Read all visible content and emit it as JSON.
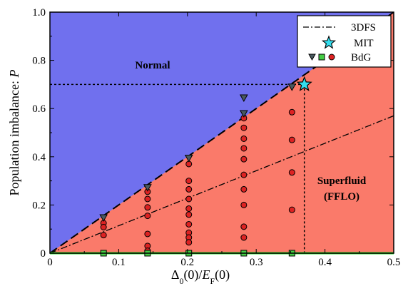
{
  "chart_data": {
    "type": "scatter",
    "title": "",
    "xlabel": "Δ0(0)/EF(0)",
    "xlabel_parts": {
      "main": "Δ",
      "sub0": "0",
      "mid": "(0)/",
      "ital": "E",
      "sub1": "F",
      "end": "(0)"
    },
    "ylabel": "Population imbalance: P",
    "ylabel_parts": {
      "main": "Population imbalance: ",
      "ital": "P"
    },
    "xlim": [
      0,
      0.5
    ],
    "ylim": [
      0,
      1.0
    ],
    "x_tick_labels": [
      "0",
      "0.1",
      "0.2",
      "0.3",
      "0.4",
      "0.5"
    ],
    "y_tick_labels": [
      "0",
      "0.2",
      "0.4",
      "0.6",
      "0.8",
      "1.0"
    ],
    "x_ticks": [
      0,
      0.1,
      0.2,
      0.3,
      0.4,
      0.5
    ],
    "y_ticks": [
      0,
      0.2,
      0.4,
      0.6,
      0.8,
      1.0
    ],
    "grid": false,
    "legend_position": "top-right",
    "regions": {
      "normal": {
        "label": "Normal",
        "color": "#7070ee"
      },
      "superfluid": {
        "label_line1": "Superfluid",
        "label_line2": "(FFLO)",
        "color": "#fa7a6a"
      }
    },
    "boundary_line": {
      "x": [
        0,
        0.5
      ],
      "y": [
        0,
        1.0
      ],
      "style": "dashed"
    },
    "three_dfs_line": {
      "name": "3DFS",
      "x": [
        0,
        0.5
      ],
      "y": [
        0,
        0.57
      ],
      "style": "dashdot"
    },
    "mit_point": {
      "name": "MIT",
      "x": 0.37,
      "y": 0.7,
      "color": "#33ddee"
    },
    "mit_guides": {
      "horizontal_from_x": 0,
      "vertical_to_y": 0
    },
    "bdg": {
      "name": "BdG",
      "triangles": [
        {
          "x": 0.078,
          "y": 0.148
        },
        {
          "x": 0.142,
          "y": 0.273
        },
        {
          "x": 0.202,
          "y": 0.395
        },
        {
          "x": 0.282,
          "y": 0.58
        },
        {
          "x": 0.282,
          "y": 0.645
        },
        {
          "x": 0.352,
          "y": 0.69
        }
      ],
      "squares": [
        {
          "x": 0.078,
          "y": 0
        },
        {
          "x": 0.142,
          "y": 0
        },
        {
          "x": 0.202,
          "y": 0
        },
        {
          "x": 0.282,
          "y": 0
        },
        {
          "x": 0.352,
          "y": 0
        }
      ],
      "circles": [
        {
          "x": 0.078,
          "y": 0.125
        },
        {
          "x": 0.078,
          "y": 0.108
        },
        {
          "x": 0.078,
          "y": 0.075
        },
        {
          "x": 0.142,
          "y": 0.255
        },
        {
          "x": 0.142,
          "y": 0.225
        },
        {
          "x": 0.142,
          "y": 0.19
        },
        {
          "x": 0.142,
          "y": 0.155
        },
        {
          "x": 0.142,
          "y": 0.08
        },
        {
          "x": 0.142,
          "y": 0.03
        },
        {
          "x": 0.142,
          "y": 0.01
        },
        {
          "x": 0.202,
          "y": 0.37
        },
        {
          "x": 0.202,
          "y": 0.3
        },
        {
          "x": 0.202,
          "y": 0.265
        },
        {
          "x": 0.202,
          "y": 0.225
        },
        {
          "x": 0.202,
          "y": 0.185
        },
        {
          "x": 0.202,
          "y": 0.16
        },
        {
          "x": 0.202,
          "y": 0.12
        },
        {
          "x": 0.202,
          "y": 0.085
        },
        {
          "x": 0.202,
          "y": 0.065
        },
        {
          "x": 0.202,
          "y": 0.045
        },
        {
          "x": 0.282,
          "y": 0.56
        },
        {
          "x": 0.282,
          "y": 0.52
        },
        {
          "x": 0.282,
          "y": 0.475
        },
        {
          "x": 0.282,
          "y": 0.435
        },
        {
          "x": 0.282,
          "y": 0.39
        },
        {
          "x": 0.282,
          "y": 0.325
        },
        {
          "x": 0.282,
          "y": 0.265
        },
        {
          "x": 0.282,
          "y": 0.2
        },
        {
          "x": 0.282,
          "y": 0.11
        },
        {
          "x": 0.282,
          "y": 0.065
        },
        {
          "x": 0.352,
          "y": 0.585
        },
        {
          "x": 0.352,
          "y": 0.47
        },
        {
          "x": 0.352,
          "y": 0.335
        },
        {
          "x": 0.352,
          "y": 0.18
        }
      ],
      "colors": {
        "triangle": "#4a5a60",
        "square": "#44cc44",
        "circle": "#dd2222"
      }
    },
    "zero_line_color": "#22dd22",
    "legend": {
      "three_dfs_label": "3DFS",
      "mit_label": "MIT",
      "bdg_label": "BdG"
    }
  }
}
